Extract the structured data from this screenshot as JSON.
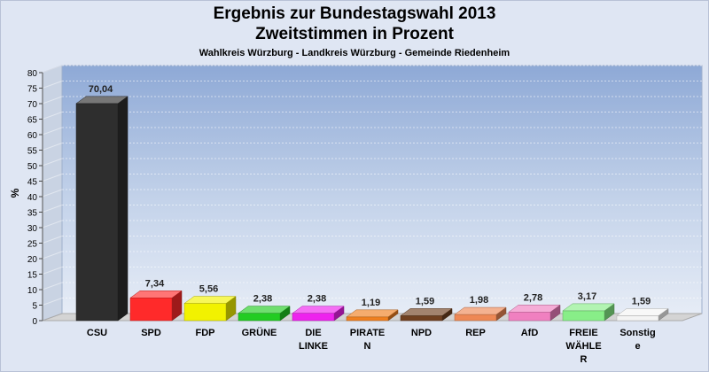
{
  "chart_data": {
    "type": "bar",
    "title_line1": "Ergebnis zur Bundestagswahl 2013",
    "title_line2": "Zweitstimmen in Prozent",
    "subtitle": "Wahlkreis Würzburg - Landkreis Würzburg - Gemeinde Riedenheim",
    "ylabel": "%",
    "ylim": [
      0,
      80
    ],
    "yticks": [
      0,
      5,
      10,
      15,
      20,
      25,
      30,
      35,
      40,
      45,
      50,
      55,
      60,
      65,
      70,
      75,
      80
    ],
    "grid": true,
    "categories": [
      [
        "CSU"
      ],
      [
        "SPD"
      ],
      [
        "FDP"
      ],
      [
        "GRÜNE"
      ],
      [
        "DIE",
        "LINKE"
      ],
      [
        "PIRATE",
        "N"
      ],
      [
        "NPD"
      ],
      [
        "REP"
      ],
      [
        "AfD"
      ],
      [
        "FREIE",
        "WÄHLE",
        "R"
      ],
      [
        "Sonstig",
        "e"
      ]
    ],
    "values": [
      70.04,
      7.34,
      5.56,
      2.38,
      2.38,
      1.19,
      1.59,
      1.98,
      2.78,
      3.17,
      1.59
    ],
    "value_labels": [
      "70,04",
      "7,34",
      "5,56",
      "2,38",
      "2,38",
      "1,19",
      "1,59",
      "1,98",
      "2,78",
      "3,17",
      "1,59"
    ],
    "colors": [
      "#2e2e2e",
      "#ff2a2a",
      "#f2f200",
      "#22cc22",
      "#ee22ee",
      "#f08020",
      "#704020",
      "#ee8855",
      "#f080c0",
      "#88ee88",
      "#f4f4f4"
    ]
  }
}
